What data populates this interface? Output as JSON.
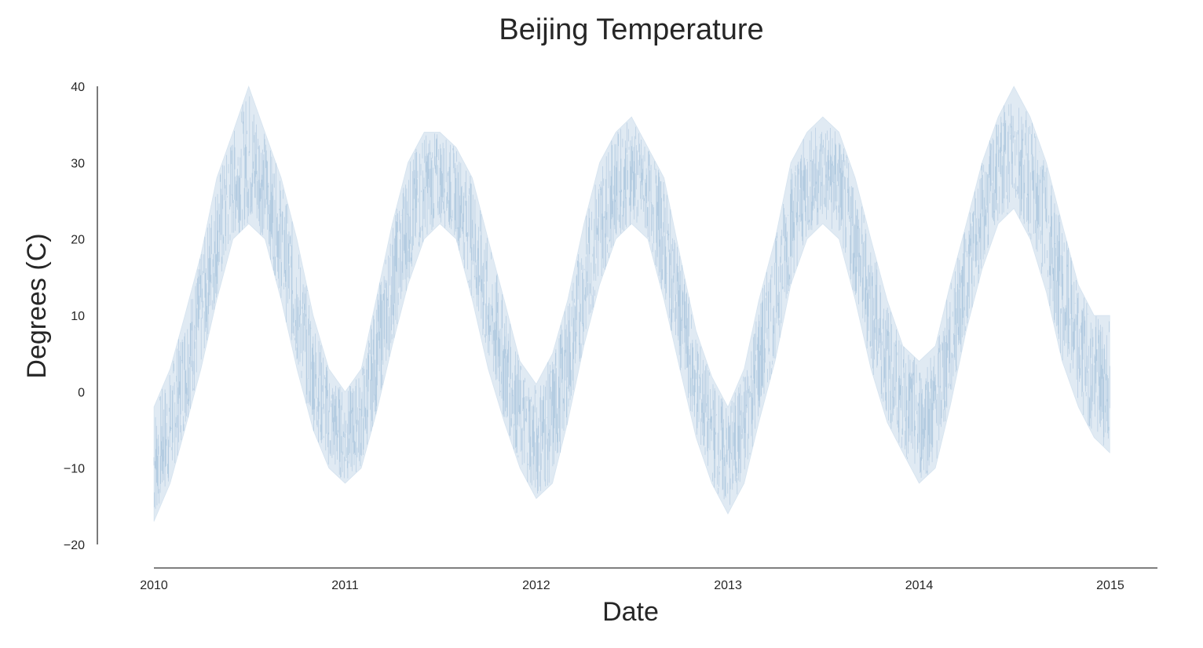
{
  "chart_data": {
    "type": "line",
    "title": "Beijing Temperature",
    "xlabel": "Date",
    "ylabel": "Degrees (C)",
    "xlim": [
      "2010-01-01",
      "2015-04-01"
    ],
    "ylim": [
      -20,
      40
    ],
    "x_ticks": [
      {
        "date": "2010-01-01",
        "label": "2010"
      },
      {
        "date": "2011-01-01",
        "label": "2011"
      },
      {
        "date": "2012-01-01",
        "label": "2012"
      },
      {
        "date": "2013-01-01",
        "label": "2013"
      },
      {
        "date": "2014-01-01",
        "label": "2014"
      },
      {
        "date": "2015-01-01",
        "label": "2015"
      }
    ],
    "y_ticks": [
      {
        "value": -20,
        "label": "−20"
      },
      {
        "value": -10,
        "label": "−10"
      },
      {
        "value": 0,
        "label": "0"
      },
      {
        "value": 10,
        "label": "10"
      },
      {
        "value": 20,
        "label": "20"
      },
      {
        "value": 30,
        "label": "30"
      },
      {
        "value": 40,
        "label": "40"
      }
    ],
    "grid": false,
    "legend": "none",
    "series": [
      {
        "color": "#a6c4de",
        "x": [
          "2010-01-01",
          "2010-02-01",
          "2010-03-01",
          "2010-04-01",
          "2010-05-01",
          "2010-06-01",
          "2010-07-01",
          "2010-08-01",
          "2010-09-01",
          "2010-10-01",
          "2010-11-01",
          "2010-12-01",
          "2011-01-01",
          "2011-02-01",
          "2011-03-01",
          "2011-04-01",
          "2011-05-01",
          "2011-06-01",
          "2011-07-01",
          "2011-08-01",
          "2011-09-01",
          "2011-10-01",
          "2011-11-01",
          "2011-12-01",
          "2012-01-01",
          "2012-02-01",
          "2012-03-01",
          "2012-04-01",
          "2012-05-01",
          "2012-06-01",
          "2012-07-01",
          "2012-08-01",
          "2012-09-01",
          "2012-10-01",
          "2012-11-01",
          "2012-12-01",
          "2013-01-01",
          "2013-02-01",
          "2013-03-01",
          "2013-04-01",
          "2013-05-01",
          "2013-06-01",
          "2013-07-01",
          "2013-08-01",
          "2013-09-01",
          "2013-10-01",
          "2013-11-01",
          "2013-12-01",
          "2014-01-01",
          "2014-02-01",
          "2014-03-01",
          "2014-04-01",
          "2014-05-01",
          "2014-06-01",
          "2014-07-01",
          "2014-08-01",
          "2014-09-01",
          "2014-10-01",
          "2014-11-01",
          "2014-12-01",
          "2014-12-31"
        ],
        "low": [
          -17,
          -12,
          -5,
          3,
          12,
          20,
          22,
          20,
          12,
          3,
          -5,
          -10,
          -12,
          -10,
          -3,
          6,
          14,
          20,
          22,
          20,
          12,
          3,
          -4,
          -10,
          -14,
          -12,
          -4,
          6,
          14,
          20,
          22,
          20,
          12,
          3,
          -6,
          -12,
          -16,
          -12,
          -4,
          4,
          14,
          20,
          22,
          20,
          12,
          3,
          -4,
          -8,
          -12,
          -10,
          -2,
          8,
          16,
          22,
          24,
          20,
          13,
          4,
          -2,
          -6,
          -8
        ],
        "high": [
          -2,
          3,
          10,
          18,
          28,
          34,
          40,
          34,
          28,
          20,
          10,
          3,
          0,
          3,
          12,
          22,
          30,
          34,
          34,
          32,
          28,
          20,
          12,
          4,
          1,
          5,
          12,
          22,
          30,
          34,
          36,
          32,
          28,
          18,
          8,
          2,
          -2,
          3,
          12,
          20,
          30,
          34,
          36,
          34,
          28,
          20,
          12,
          6,
          4,
          6,
          14,
          22,
          30,
          36,
          40,
          36,
          30,
          22,
          14,
          10,
          10
        ]
      }
    ]
  }
}
